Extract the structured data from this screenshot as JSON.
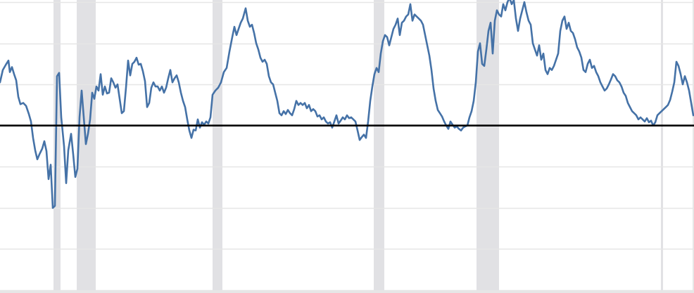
{
  "colors": {
    "background": "#ffffff",
    "gridline": "#e6e6e6",
    "recession_band": "#e1e1e4",
    "series_line": "#4572a7",
    "zero_line": "#000000"
  },
  "chart_data": {
    "type": "line",
    "title": "",
    "xlabel": "",
    "ylabel": "",
    "xlim": [
      0,
      986
    ],
    "ylim": [
      -4,
      3
    ],
    "grid": true,
    "legend": "none",
    "tick_labels_visible": false,
    "reference_line": {
      "y": 0
    },
    "shaded_ranges": [
      [
        76,
        86
      ],
      [
        109,
        136
      ],
      [
        302,
        316
      ],
      [
        531,
        546
      ],
      [
        677,
        709
      ],
      [
        939,
        942
      ]
    ],
    "series": [
      {
        "color": "#4572a7",
        "points": [
          [
            0,
            1.05
          ],
          [
            4,
            1.35
          ],
          [
            9,
            1.5
          ],
          [
            12,
            1.58
          ],
          [
            14,
            1.3
          ],
          [
            17,
            1.42
          ],
          [
            20,
            1.25
          ],
          [
            23,
            1.1
          ],
          [
            26,
            0.7
          ],
          [
            29,
            0.52
          ],
          [
            33,
            0.55
          ],
          [
            37,
            0.48
          ],
          [
            41,
            0.28
          ],
          [
            44,
            0.1
          ],
          [
            47,
            -0.3
          ],
          [
            50,
            -0.6
          ],
          [
            53,
            -0.82
          ],
          [
            56,
            -0.7
          ],
          [
            60,
            -0.56
          ],
          [
            63,
            -0.38
          ],
          [
            66,
            -0.62
          ],
          [
            69,
            -1.3
          ],
          [
            72,
            -0.95
          ],
          [
            75,
            -2.0
          ],
          [
            78,
            -1.95
          ],
          [
            81,
            1.2
          ],
          [
            84,
            1.28
          ],
          [
            87,
            0.2
          ],
          [
            91,
            -0.5
          ],
          [
            94,
            -1.4
          ],
          [
            97,
            -0.6
          ],
          [
            101,
            -0.2
          ],
          [
            104,
            -0.7
          ],
          [
            107,
            -1.25
          ],
          [
            110,
            -1.05
          ],
          [
            113,
            0.2
          ],
          [
            116,
            0.85
          ],
          [
            119,
            0.2
          ],
          [
            122,
            -0.45
          ],
          [
            125,
            -0.2
          ],
          [
            128,
            0.15
          ],
          [
            131,
            0.8
          ],
          [
            134,
            0.65
          ],
          [
            137,
            0.95
          ],
          [
            140,
            0.85
          ],
          [
            143,
            1.25
          ],
          [
            146,
            0.75
          ],
          [
            149,
            0.95
          ],
          [
            152,
            0.78
          ],
          [
            155,
            0.8
          ],
          [
            158,
            1.15
          ],
          [
            161,
            1.05
          ],
          [
            164,
            0.92
          ],
          [
            167,
            1.0
          ],
          [
            170,
            0.65
          ],
          [
            173,
            0.3
          ],
          [
            176,
            0.35
          ],
          [
            179,
            0.92
          ],
          [
            182,
            1.58
          ],
          [
            185,
            1.22
          ],
          [
            188,
            1.5
          ],
          [
            191,
            1.55
          ],
          [
            194,
            1.65
          ],
          [
            197,
            1.48
          ],
          [
            200,
            1.5
          ],
          [
            203,
            1.32
          ],
          [
            206,
            1.08
          ],
          [
            209,
            0.45
          ],
          [
            212,
            0.55
          ],
          [
            215,
            0.92
          ],
          [
            218,
            1.05
          ],
          [
            221,
            0.95
          ],
          [
            224,
            0.95
          ],
          [
            227,
            0.85
          ],
          [
            230,
            0.95
          ],
          [
            233,
            0.8
          ],
          [
            236,
            0.92
          ],
          [
            239,
            1.15
          ],
          [
            242,
            1.35
          ],
          [
            245,
            1.05
          ],
          [
            248,
            1.15
          ],
          [
            251,
            1.22
          ],
          [
            254,
            1.05
          ],
          [
            257,
            0.8
          ],
          [
            260,
            0.6
          ],
          [
            263,
            0.45
          ],
          [
            266,
            0.15
          ],
          [
            269,
            -0.12
          ],
          [
            272,
            -0.3
          ],
          [
            275,
            -0.1
          ],
          [
            278,
            -0.12
          ],
          [
            281,
            0.15
          ],
          [
            284,
            -0.05
          ],
          [
            287,
            0.08
          ],
          [
            290,
            0.02
          ],
          [
            293,
            0.1
          ],
          [
            296,
            0.05
          ],
          [
            299,
            0.2
          ],
          [
            302,
            0.75
          ],
          [
            306,
            0.85
          ],
          [
            310,
            0.92
          ],
          [
            314,
            1.05
          ],
          [
            318,
            1.3
          ],
          [
            322,
            1.4
          ],
          [
            326,
            1.8
          ],
          [
            330,
            2.15
          ],
          [
            333,
            2.4
          ],
          [
            336,
            2.2
          ],
          [
            339,
            2.35
          ],
          [
            342,
            2.5
          ],
          [
            345,
            2.6
          ],
          [
            349,
            2.85
          ],
          [
            352,
            2.55
          ],
          [
            355,
            2.4
          ],
          [
            358,
            2.45
          ],
          [
            361,
            2.25
          ],
          [
            364,
            2.0
          ],
          [
            367,
            1.85
          ],
          [
            370,
            1.65
          ],
          [
            373,
            1.55
          ],
          [
            376,
            1.6
          ],
          [
            379,
            1.5
          ],
          [
            382,
            1.2
          ],
          [
            385,
            1.05
          ],
          [
            388,
            1.0
          ],
          [
            391,
            0.8
          ],
          [
            394,
            0.6
          ],
          [
            397,
            0.3
          ],
          [
            400,
            0.25
          ],
          [
            403,
            0.35
          ],
          [
            406,
            0.28
          ],
          [
            409,
            0.38
          ],
          [
            412,
            0.3
          ],
          [
            415,
            0.25
          ],
          [
            418,
            0.4
          ],
          [
            421,
            0.6
          ],
          [
            424,
            0.5
          ],
          [
            427,
            0.55
          ],
          [
            430,
            0.5
          ],
          [
            433,
            0.55
          ],
          [
            436,
            0.42
          ],
          [
            439,
            0.5
          ],
          [
            442,
            0.35
          ],
          [
            445,
            0.4
          ],
          [
            448,
            0.35
          ],
          [
            451,
            0.22
          ],
          [
            454,
            0.25
          ],
          [
            457,
            0.15
          ],
          [
            460,
            0.2
          ],
          [
            463,
            0.1
          ],
          [
            466,
            0.05
          ],
          [
            469,
            0.08
          ],
          [
            472,
            -0.05
          ],
          [
            475,
            0.1
          ],
          [
            478,
            0.25
          ],
          [
            481,
            0.05
          ],
          [
            484,
            0.12
          ],
          [
            487,
            0.2
          ],
          [
            490,
            0.15
          ],
          [
            493,
            0.25
          ],
          [
            496,
            0.18
          ],
          [
            499,
            0.2
          ],
          [
            502,
            0.15
          ],
          [
            505,
            0.1
          ],
          [
            508,
            -0.12
          ],
          [
            511,
            -0.35
          ],
          [
            514,
            -0.28
          ],
          [
            517,
            -0.22
          ],
          [
            520,
            -0.3
          ],
          [
            523,
            0.1
          ],
          [
            526,
            0.6
          ],
          [
            529,
            0.95
          ],
          [
            532,
            1.25
          ],
          [
            535,
            1.4
          ],
          [
            538,
            1.3
          ],
          [
            541,
            1.75
          ],
          [
            544,
            2.05
          ],
          [
            547,
            2.2
          ],
          [
            550,
            2.15
          ],
          [
            553,
            1.95
          ],
          [
            556,
            2.15
          ],
          [
            559,
            2.35
          ],
          [
            562,
            2.45
          ],
          [
            565,
            2.6
          ],
          [
            568,
            2.2
          ],
          [
            571,
            2.5
          ],
          [
            574,
            2.55
          ],
          [
            577,
            2.65
          ],
          [
            580,
            2.7
          ],
          [
            583,
            2.95
          ],
          [
            586,
            2.55
          ],
          [
            589,
            2.7
          ],
          [
            592,
            2.65
          ],
          [
            595,
            2.6
          ],
          [
            598,
            2.55
          ],
          [
            601,
            2.45
          ],
          [
            604,
            2.2
          ],
          [
            607,
            1.95
          ],
          [
            610,
            1.7
          ],
          [
            613,
            1.35
          ],
          [
            616,
            0.9
          ],
          [
            619,
            0.6
          ],
          [
            622,
            0.38
          ],
          [
            625,
            0.3
          ],
          [
            628,
            0.22
          ],
          [
            631,
            0.1
          ],
          [
            634,
            0.0
          ],
          [
            637,
            -0.08
          ],
          [
            640,
            0.1
          ],
          [
            643,
            0.02
          ],
          [
            646,
            -0.05
          ],
          [
            649,
            -0.02
          ],
          [
            652,
            -0.08
          ],
          [
            655,
            -0.12
          ],
          [
            658,
            -0.05
          ],
          [
            661,
            -0.02
          ],
          [
            664,
            0.0
          ],
          [
            667,
            0.2
          ],
          [
            670,
            0.35
          ],
          [
            673,
            0.6
          ],
          [
            676,
            1.05
          ],
          [
            679,
            1.8
          ],
          [
            682,
            2.0
          ],
          [
            685,
            1.5
          ],
          [
            688,
            1.45
          ],
          [
            691,
            1.85
          ],
          [
            694,
            2.3
          ],
          [
            697,
            2.5
          ],
          [
            700,
            1.75
          ],
          [
            703,
            2.55
          ],
          [
            706,
            2.8
          ],
          [
            709,
            2.7
          ],
          [
            712,
            2.65
          ],
          [
            715,
            2.95
          ],
          [
            718,
            2.8
          ],
          [
            721,
            3.0
          ],
          [
            724,
            3.1
          ],
          [
            727,
            2.95
          ],
          [
            730,
            3.05
          ],
          [
            733,
            2.6
          ],
          [
            736,
            2.3
          ],
          [
            739,
            2.6
          ],
          [
            742,
            2.8
          ],
          [
            745,
            3.0
          ],
          [
            748,
            2.75
          ],
          [
            751,
            2.55
          ],
          [
            754,
            2.45
          ],
          [
            757,
            2.0
          ],
          [
            760,
            1.85
          ],
          [
            763,
            1.7
          ],
          [
            766,
            1.95
          ],
          [
            769,
            1.6
          ],
          [
            772,
            1.75
          ],
          [
            775,
            1.35
          ],
          [
            778,
            1.25
          ],
          [
            781,
            1.4
          ],
          [
            784,
            1.35
          ],
          [
            787,
            1.45
          ],
          [
            790,
            1.6
          ],
          [
            793,
            1.75
          ],
          [
            796,
            2.3
          ],
          [
            799,
            2.55
          ],
          [
            802,
            2.65
          ],
          [
            805,
            2.35
          ],
          [
            808,
            2.5
          ],
          [
            811,
            2.3
          ],
          [
            814,
            2.25
          ],
          [
            817,
            2.1
          ],
          [
            820,
            1.9
          ],
          [
            823,
            1.8
          ],
          [
            826,
            1.65
          ],
          [
            829,
            1.35
          ],
          [
            832,
            1.3
          ],
          [
            835,
            1.5
          ],
          [
            838,
            1.6
          ],
          [
            841,
            1.4
          ],
          [
            844,
            1.45
          ],
          [
            847,
            1.3
          ],
          [
            850,
            1.2
          ],
          [
            853,
            1.05
          ],
          [
            856,
            0.95
          ],
          [
            859,
            0.85
          ],
          [
            862,
            0.9
          ],
          [
            865,
            1.0
          ],
          [
            868,
            1.12
          ],
          [
            871,
            1.25
          ],
          [
            874,
            1.2
          ],
          [
            877,
            1.1
          ],
          [
            880,
            1.05
          ],
          [
            883,
            0.95
          ],
          [
            886,
            0.8
          ],
          [
            889,
            0.72
          ],
          [
            892,
            0.55
          ],
          [
            895,
            0.45
          ],
          [
            898,
            0.35
          ],
          [
            901,
            0.3
          ],
          [
            904,
            0.25
          ],
          [
            907,
            0.15
          ],
          [
            910,
            0.2
          ],
          [
            913,
            0.15
          ],
          [
            916,
            0.1
          ],
          [
            919,
            0.18
          ],
          [
            922,
            0.08
          ],
          [
            925,
            0.12
          ],
          [
            928,
            0.0
          ],
          [
            931,
            0.08
          ],
          [
            934,
            0.25
          ],
          [
            937,
            0.3
          ],
          [
            940,
            0.35
          ],
          [
            943,
            0.4
          ],
          [
            946,
            0.45
          ],
          [
            949,
            0.5
          ],
          [
            952,
            0.62
          ],
          [
            955,
            0.82
          ],
          [
            958,
            1.05
          ],
          [
            961,
            1.55
          ],
          [
            964,
            1.45
          ],
          [
            967,
            1.25
          ],
          [
            970,
            1.0
          ],
          [
            973,
            1.2
          ],
          [
            976,
            1.05
          ],
          [
            979,
            0.85
          ],
          [
            982,
            0.55
          ],
          [
            985,
            0.25
          ]
        ]
      }
    ]
  }
}
